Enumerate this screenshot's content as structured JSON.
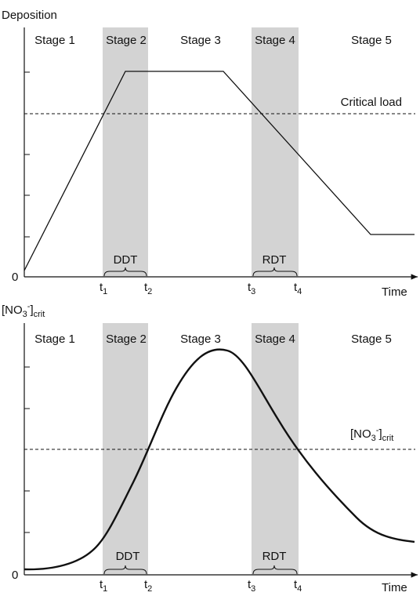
{
  "top": {
    "y_axis_label": "Deposition",
    "zero": "0",
    "x_axis_label": "Time",
    "stages": [
      "Stage 1",
      "Stage 2",
      "Stage 3",
      "Stage 4",
      "Stage 5"
    ],
    "threshold_label": "Critical load",
    "periods": [
      "DDT",
      "RDT"
    ],
    "time_marks": [
      {
        "base": "t",
        "sub": "1"
      },
      {
        "base": "t",
        "sub": "2"
      },
      {
        "base": "t",
        "sub": "3"
      },
      {
        "base": "t",
        "sub": "4"
      }
    ]
  },
  "bottom": {
    "y_axis_label": {
      "open": "[NO",
      "sub": "3",
      "sup": "-",
      "close": "]",
      "suffix": "crit"
    },
    "zero": "0",
    "x_axis_label": "Time",
    "stages": [
      "Stage 1",
      "Stage 2",
      "Stage 3",
      "Stage 4",
      "Stage 5"
    ],
    "threshold_label": {
      "open": "[NO",
      "sub": "3",
      "sup": "-",
      "close": "]",
      "suffix": "crit"
    },
    "periods": [
      "DDT",
      "RDT"
    ],
    "time_marks": [
      {
        "base": "t",
        "sub": "1"
      },
      {
        "base": "t",
        "sub": "2"
      },
      {
        "base": "t",
        "sub": "3"
      },
      {
        "base": "t",
        "sub": "4"
      }
    ]
  }
}
